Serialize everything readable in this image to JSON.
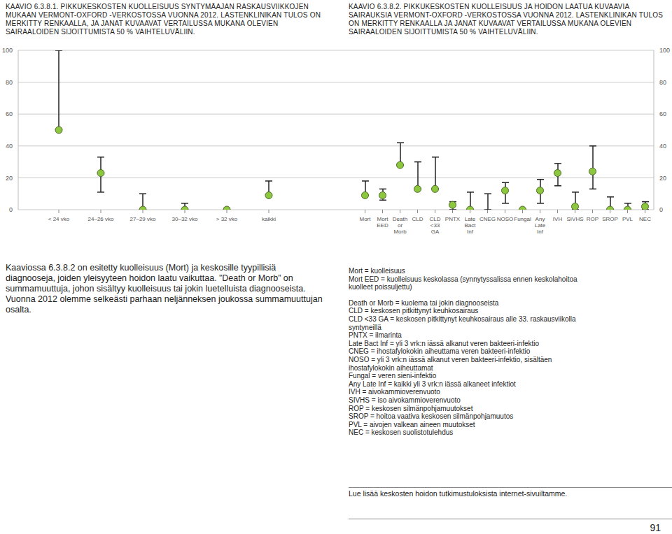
{
  "chart_data": [
    {
      "type": "scatter",
      "title": "KAAVIO 6.3.8.1. PIKKUKESKOSTEN KUOLLEISUUS SYNTYMÄAJAN RASKAUSVIIKKOJEN MUKAAN VERMONT-OXFORD -VERKOSTOSSA VUONNA 2012. LASTENKLINIKAN TULOS ON MERKITTY RENKAALLA, JA JANAT KUVAAVAT VERTAILUSSA MUKANA OLEVIEN SAIRAALOIDEN SIJOITTUMISTA 50 % VAIHTELUVÄLIIN.",
      "categories": [
        "< 24 vko",
        "24–26 vko",
        "27–29 vko",
        "30–32 vko",
        "> 32 vko",
        "kaikki"
      ],
      "values": [
        50,
        23,
        0,
        0,
        0,
        9
      ],
      "error_low": [
        50,
        11,
        0,
        0,
        0,
        9
      ],
      "error_high": [
        100,
        33,
        10,
        4,
        1,
        18
      ],
      "ylim": [
        0,
        100
      ],
      "yticks": [
        0,
        20,
        40,
        60,
        80,
        100
      ],
      "grid": true,
      "color": "#8dc63f"
    },
    {
      "type": "scatter",
      "title": "KAAVIO 6.3.8.2. PIKKUKESKOSTEN KUOLLEISUUS JA HOIDON LAATUA KUVAAVIA SAIRAUKSIA VERMONT-OXFORD -VERKOSTOSSA VUONNA 2012. LASTENKLINIKAN TULOS ON MERKITTY RENKAALLA JA JANAT KUVAAVAT VERTAILUSSA MUKANA OLEVIEN SAIRAALOIDEN SIJOITTUMISTA 50 % VAIHTELUVÄLIIN.",
      "categories": [
        "Mort",
        "Mort EED",
        "Death or Morb",
        "CLD",
        "CLD <33 GA",
        "PNTX",
        "Late Bact Inf",
        "CNEG",
        "NOSO",
        "Fungal",
        "Any Late Inf",
        "IVH",
        "SIVHS",
        "ROP",
        "SROP",
        "PVL",
        "NEC"
      ],
      "values": [
        9,
        9,
        28,
        13,
        13,
        3,
        0,
        null,
        12,
        0,
        12,
        23,
        2,
        24,
        0,
        0,
        2
      ],
      "error_low": [
        9,
        6,
        28,
        13,
        13,
        0,
        0,
        0,
        4,
        null,
        4,
        15,
        0,
        13,
        0,
        0,
        0
      ],
      "error_high": [
        18,
        13,
        42,
        30,
        33,
        5,
        11,
        10,
        17,
        null,
        19,
        29,
        11,
        40,
        8,
        4,
        5
      ],
      "ylim": [
        0,
        100
      ],
      "yticks": [
        0,
        20,
        40,
        60,
        80,
        100
      ],
      "grid": true,
      "color": "#8dc63f"
    }
  ],
  "document": {
    "paragraph": "Kaaviossa 6.3.8.2 on esitetty kuolleisuus (Mort) ja keskosille tyypillisiä diagnooseja, joiden yleisyyteen hoidon laatu vaikuttaa. ”Death or Morb” on summamuuttuja, johon sisältyy kuolleisuus tai jokin luetelluista diagnooseista. Vuonna 2012 olemme selkeästi parhaan neljänneksen joukossa summamuuttujan osalta.",
    "definitions": [
      [
        "Mort = kuolleisuus",
        "Mort EED = kuolleisuus keskolassa (synnytyssalissa ennen keskolahoitoa kuolleet poissuljettu)"
      ],
      [
        "Death or Morb = kuolema tai jokin diagnooseista",
        "CLD = keskosen pitkittynyt keuhkosairaus",
        "CLD <33 GA = keskosen pitkittynyt keuhkosairaus alle 33. raskausviikolla syntyneillä",
        "PNTX = ilmarinta",
        "Late Bact Inf = yli 3 vrk:n iässä alkanut veren bakteeri-infektio",
        "CNEG = ihostafylokokin aiheuttama veren bakteeri-infektio",
        "NOSO = yli 3 vrk:n iässä alkanut veren bakteeri-infektio, sisältäen ihostafylokokin aiheuttamat",
        "Fungal = veren sieni-infektio",
        "Any Late Inf = kaikki yli 3 vrk:n iässä alkaneet infektiot",
        "IVH = aivokammioverenvuoto",
        "SIVHS = iso aivokammioverenvuoto",
        "ROP = keskosen silmänpohjamuutokset",
        "SROP = hoitoa vaativa keskosen silmänpohjamuutos",
        "PVL = aivojen valkean aineen muutokset",
        "NEC = keskosen suolistotulehdus"
      ]
    ],
    "footer_note": "Lue lisää keskosten hoidon tutkimustuloksista internet-sivuiltamme.",
    "page_number": "91"
  }
}
